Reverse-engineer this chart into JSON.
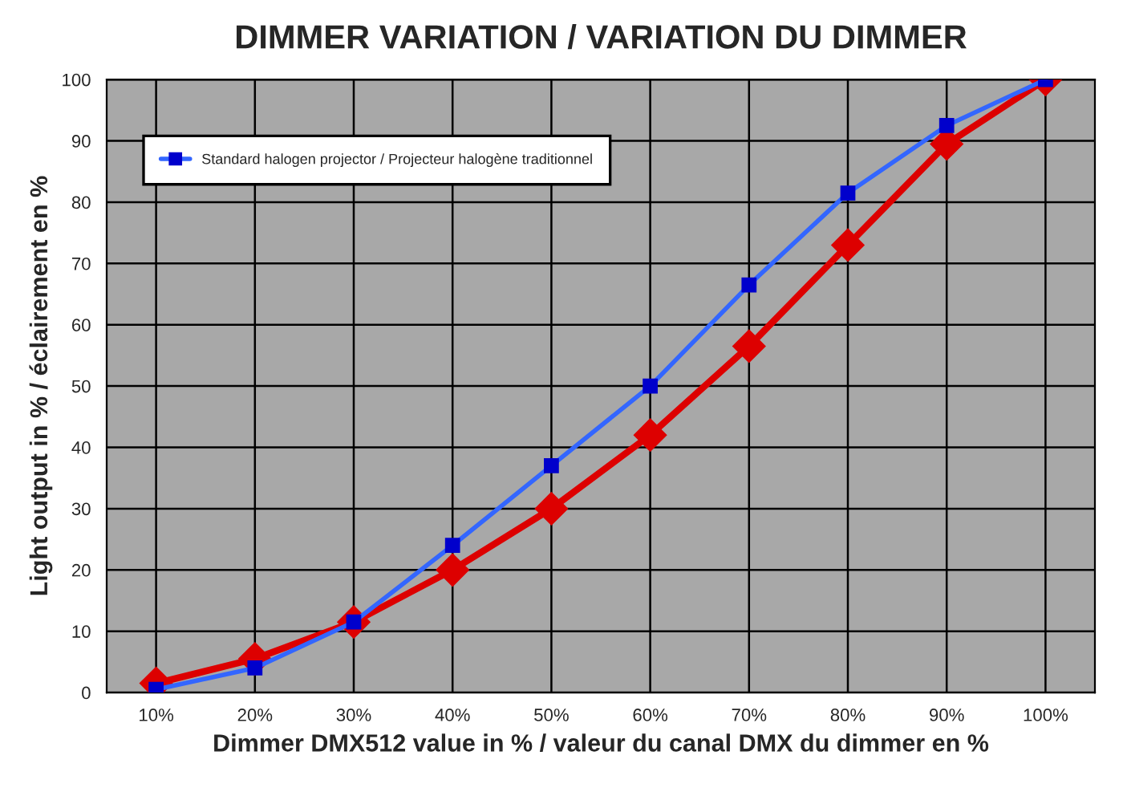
{
  "chart_data": {
    "type": "line",
    "title": "DIMMER VARIATION / VARIATION DU DIMMER",
    "xlabel": "Dimmer DMX512 value in % / valeur du canal DMX du dimmer en %",
    "ylabel": "Light output in % / éclairement en %",
    "categories": [
      "10%",
      "20%",
      "30%",
      "40%",
      "50%",
      "60%",
      "70%",
      "80%",
      "90%",
      "100%"
    ],
    "series": [
      {
        "color": "#dd0000",
        "marker": "diamond",
        "values": [
          1.5,
          5.5,
          11.5,
          20,
          30,
          42,
          56.5,
          73,
          89.5,
          100
        ]
      },
      {
        "name": "Standard halogen projector / Projecteur halogène traditionnel",
        "color": "#3366ff",
        "marker": "square",
        "values": [
          0.5,
          4,
          11.5,
          24,
          37,
          50,
          66.5,
          81.5,
          92.5,
          100
        ]
      }
    ],
    "ylim": [
      0,
      100
    ],
    "yticks": [
      0,
      10,
      20,
      30,
      40,
      50,
      60,
      70,
      80,
      90,
      100
    ],
    "grid": true,
    "legend": "top left",
    "line_style": "solid"
  }
}
